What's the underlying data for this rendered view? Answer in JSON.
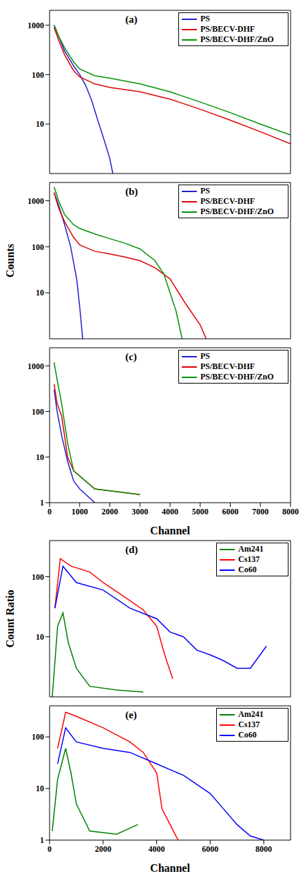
{
  "chart_data": [
    {
      "type": "line",
      "title": "(a)",
      "log": "y",
      "xlim": [
        0,
        8000
      ],
      "xticks": [
        0,
        1000,
        2000,
        3000,
        4000,
        5000,
        6000,
        7000,
        8000
      ],
      "ylim": [
        1,
        2000
      ],
      "yticks": [
        1,
        10,
        100,
        1000
      ],
      "tick_labels": "y",
      "legend": "upper right",
      "series": [
        {
          "name": "PS",
          "color": "#1f1fd0",
          "x": [
            150,
            300,
            500,
            800,
            1000,
            1200,
            1400,
            1600,
            1800,
            2000,
            2100
          ],
          "values": [
            1000,
            600,
            300,
            150,
            100,
            60,
            30,
            12,
            5,
            2,
            1
          ]
        },
        {
          "name": "PS/BECV-DHF",
          "color": "#e00000",
          "x": [
            150,
            300,
            500,
            800,
            1000,
            1500,
            2000,
            3000,
            4000,
            5000,
            6000,
            7000,
            8000
          ],
          "values": [
            900,
            500,
            250,
            120,
            90,
            65,
            55,
            45,
            32,
            20,
            12,
            7,
            4
          ]
        },
        {
          "name": "PS/BECV-DHF/ZnO",
          "color": "#009000",
          "x": [
            150,
            300,
            500,
            800,
            1000,
            1500,
            2000,
            3000,
            4000,
            5000,
            6000,
            7000,
            8000
          ],
          "values": [
            1000,
            600,
            350,
            180,
            130,
            95,
            85,
            65,
            45,
            28,
            17,
            10,
            6
          ]
        }
      ]
    },
    {
      "type": "line",
      "title": "(b)",
      "ylabel": "Counts",
      "log": "y",
      "xlim": [
        0,
        8000
      ],
      "xticks": [
        0,
        1000,
        2000,
        3000,
        4000,
        5000,
        6000,
        7000,
        8000
      ],
      "ylim": [
        1,
        2500
      ],
      "yticks": [
        1,
        10,
        100,
        1000
      ],
      "tick_labels": "y",
      "legend": "upper right",
      "series": [
        {
          "name": "PS",
          "color": "#1f1fd0",
          "x": [
            150,
            300,
            500,
            700,
            900,
            1000,
            1100
          ],
          "values": [
            1500,
            800,
            300,
            100,
            20,
            5,
            1
          ]
        },
        {
          "name": "PS/BECV-DHF",
          "color": "#e00000",
          "x": [
            150,
            300,
            500,
            800,
            1000,
            1500,
            2000,
            2500,
            3000,
            3500,
            4000,
            4500,
            5000,
            5200
          ],
          "values": [
            1500,
            700,
            350,
            160,
            110,
            80,
            70,
            60,
            50,
            35,
            20,
            6,
            2,
            1
          ]
        },
        {
          "name": "PS/BECV-DHF/ZnO",
          "color": "#009000",
          "x": [
            150,
            300,
            500,
            800,
            1000,
            1500,
            2000,
            2500,
            3000,
            3500,
            3800,
            4000,
            4200,
            4400
          ],
          "values": [
            2000,
            1000,
            500,
            300,
            250,
            190,
            150,
            120,
            90,
            50,
            25,
            10,
            4,
            1
          ]
        }
      ]
    },
    {
      "type": "line",
      "title": "(c)",
      "xlabel": "Channel",
      "log": "y",
      "xlim": [
        0,
        8000
      ],
      "xticks": [
        0,
        1000,
        2000,
        3000,
        4000,
        5000,
        6000,
        7000,
        8000
      ],
      "ylim": [
        1,
        2500
      ],
      "yticks": [
        1,
        10,
        100,
        1000
      ],
      "legend": "upper right",
      "series": [
        {
          "name": "PS",
          "color": "#1f1fd0",
          "x": [
            150,
            250,
            400,
            600,
            800,
            1000,
            1500
          ],
          "values": [
            300,
            100,
            30,
            8,
            3,
            2,
            1
          ]
        },
        {
          "name": "PS/BECV-DHF",
          "color": "#e00000",
          "x": [
            150,
            250,
            400,
            600,
            800,
            1500,
            3000
          ],
          "values": [
            400,
            150,
            80,
            10,
            5,
            2,
            1.5
          ]
        },
        {
          "name": "PS/BECV-DHF/ZnO",
          "color": "#009000",
          "x": [
            150,
            250,
            400,
            600,
            800,
            1500,
            3000
          ],
          "values": [
            1200,
            500,
            150,
            20,
            5,
            2,
            1.5
          ]
        }
      ]
    },
    {
      "type": "line",
      "title": "(d)",
      "ylabel": "Count Ratio",
      "log": "y",
      "xlim": [
        0,
        9000
      ],
      "xticks": [
        0,
        2000,
        4000,
        6000,
        8000
      ],
      "ylim": [
        1,
        400
      ],
      "yticks": [
        1,
        10,
        100
      ],
      "tick_labels": "y",
      "legend": "upper right",
      "series": [
        {
          "name": "Am241",
          "color": "#008000",
          "x": [
            100,
            300,
            500,
            700,
            1000,
            1500,
            2500,
            3500
          ],
          "values": [
            1,
            15,
            25,
            8,
            3,
            1.5,
            1.3,
            1.2
          ]
        },
        {
          "name": "Cs137",
          "color": "#ff0000",
          "x": [
            200,
            400,
            800,
            1500,
            2000,
            3000,
            3500,
            4000,
            4300,
            4600
          ],
          "values": [
            30,
            200,
            150,
            120,
            80,
            40,
            28,
            15,
            5,
            2
          ]
        },
        {
          "name": "Co60",
          "color": "#0000ff",
          "x": [
            200,
            500,
            1000,
            2000,
            3000,
            4000,
            4500,
            5000,
            5500,
            6000,
            6500,
            7000,
            7500,
            8100
          ],
          "values": [
            30,
            150,
            80,
            60,
            30,
            20,
            12,
            10,
            6,
            5,
            4,
            3,
            3,
            7
          ]
        }
      ]
    },
    {
      "type": "line",
      "title": "(e)",
      "xlabel": "Channel",
      "log": "y",
      "xlim": [
        0,
        9000
      ],
      "xticks": [
        0,
        2000,
        4000,
        6000,
        8000
      ],
      "ylim": [
        1,
        400
      ],
      "yticks": [
        1,
        10,
        100
      ],
      "legend": "upper right",
      "series": [
        {
          "name": "Am241",
          "color": "#008000",
          "x": [
            100,
            300,
            600,
            800,
            1000,
            1500,
            2500,
            3300
          ],
          "values": [
            1.5,
            15,
            60,
            20,
            5,
            1.5,
            1.3,
            2
          ]
        },
        {
          "name": "Cs137",
          "color": "#ff0000",
          "x": [
            300,
            600,
            1000,
            2000,
            3000,
            3500,
            4000,
            4200,
            4500,
            4800
          ],
          "values": [
            60,
            300,
            250,
            150,
            80,
            50,
            20,
            4,
            2,
            1
          ]
        },
        {
          "name": "Co60",
          "color": "#0000ff",
          "x": [
            300,
            600,
            1000,
            2000,
            3000,
            4000,
            5000,
            5500,
            6000,
            6500,
            7000,
            7500,
            8000
          ],
          "values": [
            30,
            150,
            80,
            60,
            50,
            30,
            18,
            12,
            8,
            4,
            2,
            1.2,
            1
          ]
        }
      ]
    }
  ]
}
